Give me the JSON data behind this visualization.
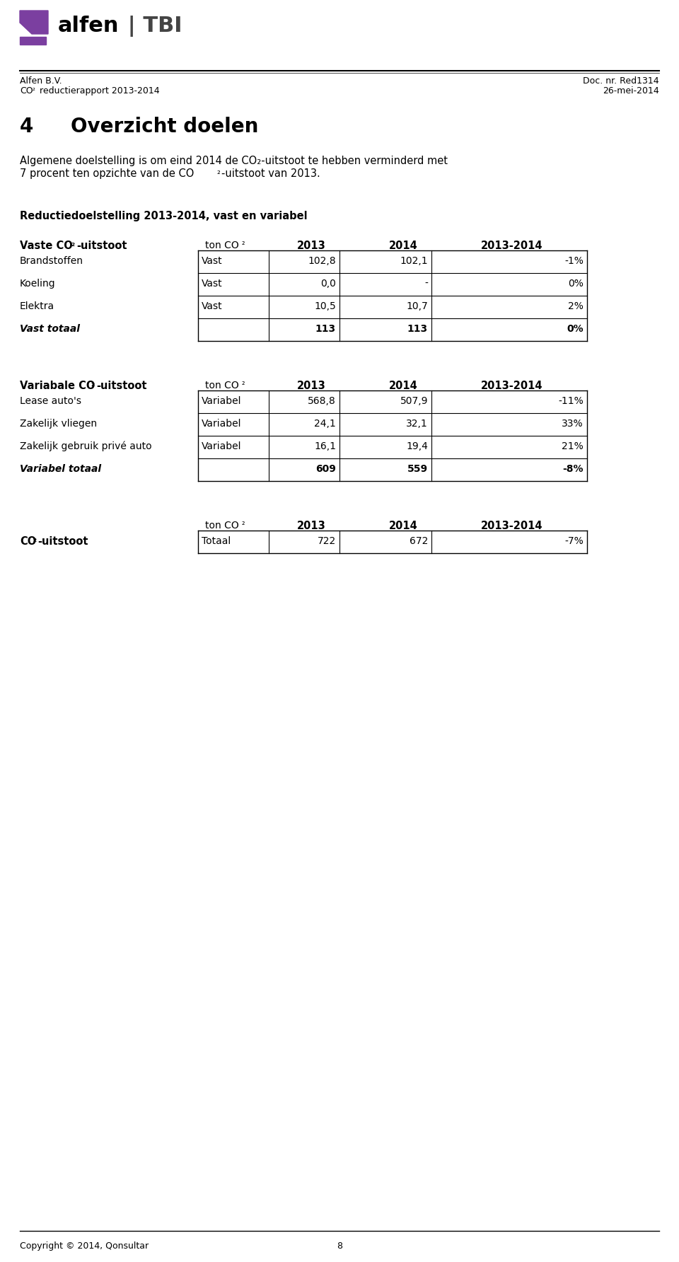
{
  "logo_text_alfen": "alfen",
  "logo_text_tbi": "| TBI",
  "header_left_line1": "Alfen B.V.",
  "header_left_line2": "CO₂ reductierapport 2013-2014",
  "header_right_line1": "Doc. nr. Red1314",
  "header_right_line2": "26-mei-2014",
  "section_number": "4",
  "section_title": "Overzicht doelen",
  "intro_text_line1": "Algemene doelstelling is om eind 2014 de CO₂-uitstoot te hebben verminderd met",
  "intro_text_line2": "7 procent ten opzichte van de CO₂-uitstoot van 2013.",
  "subtitle": "Reductiedoelstelling 2013-2014, vast en variabel",
  "table1_header_col0": "Vaste CO₂-uitstoot",
  "table1_header_col1": "ton CO₂",
  "table1_header_col2": "2013",
  "table1_header_col3": "2014",
  "table1_header_col4": "2013-2014",
  "table1_rows": [
    [
      "Brandstoffen",
      "Vast",
      "102,8",
      "102,1",
      "-1%"
    ],
    [
      "Koeling",
      "Vast",
      "0,0",
      "-",
      "0%"
    ],
    [
      "Elektra",
      "Vast",
      "10,5",
      "10,7",
      "2%"
    ]
  ],
  "table1_total_label": "Vast totaal",
  "table1_total_values": [
    "",
    "113",
    "113",
    "0%"
  ],
  "table2_header_col0": "Variabale CO₂-uitstoot",
  "table2_header_col1": "ton CO₂",
  "table2_header_col2": "2013",
  "table2_header_col3": "2014",
  "table2_header_col4": "2013-2014",
  "table2_rows": [
    [
      "Lease auto's",
      "Variabel",
      "568,8",
      "507,9",
      "-11%"
    ],
    [
      "Zakelijk vliegen",
      "Variabel",
      "24,1",
      "32,1",
      "33%"
    ],
    [
      "Zakelijk gebruik privé auto",
      "Variabel",
      "16,1",
      "19,4",
      "21%"
    ]
  ],
  "table2_total_label": "Variabel totaal",
  "table2_total_values": [
    "",
    "609",
    "559",
    "-8%"
  ],
  "table3_header_col1": "ton CO₂",
  "table3_header_col2": "2013",
  "table3_header_col3": "2014",
  "table3_header_col4": "2013-2014",
  "table3_row_label": "CO₂-uitstoot",
  "table3_row": [
    "Totaal",
    "722",
    "672",
    "-7%"
  ],
  "footer_text": "Copyright © 2014, Qonsultar",
  "footer_page": "8",
  "bg_color": "#ffffff",
  "text_color": "#000000",
  "logo_purple": "#7B3FA0",
  "border_color": "#000000",
  "header_line_color": "#000000"
}
